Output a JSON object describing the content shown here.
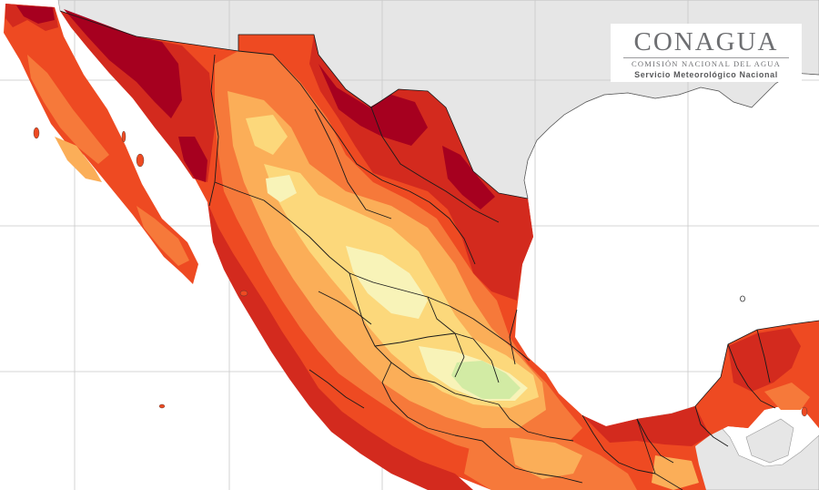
{
  "logo": {
    "title": "CONAGUA",
    "subtitle": "COMISIÓN NACIONAL DEL AGUA",
    "service": "Servicio Meteorológico Nacional"
  },
  "map": {
    "region": "Mexico",
    "colors": {
      "ocean": "#ffffff",
      "land_outside": "#e6e6e6",
      "graticule": "#c8c8c8",
      "darkest": "#a6001f",
      "dark_red": "#d32a1e",
      "red_orange": "#ee4a22",
      "orange": "#f6793a",
      "light_orange": "#fbae58",
      "yellow": "#fcd87b",
      "pale_yellow": "#f8f3b8",
      "pale_green": "#d2eba4",
      "border": "#1a1a1a"
    }
  }
}
